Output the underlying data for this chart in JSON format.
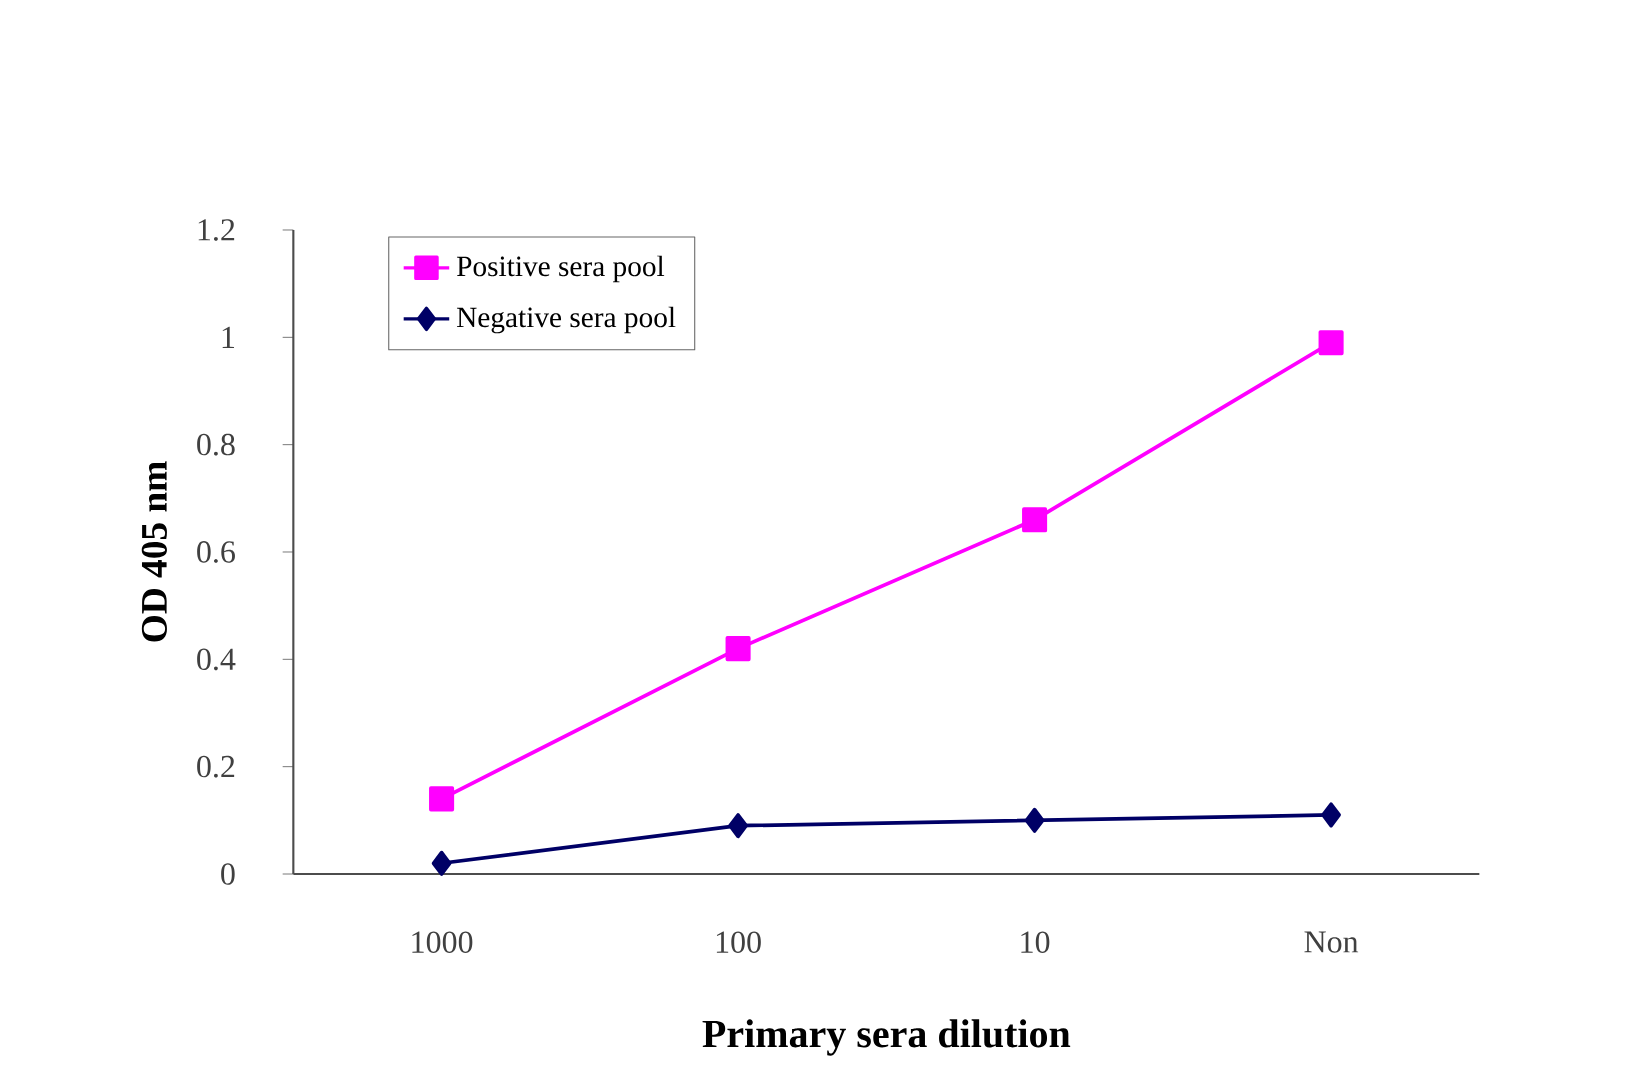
{
  "chart_data": {
    "type": "line",
    "xlabel": "Primary sera dilution",
    "ylabel": "OD 405 nm",
    "categories": [
      "1000",
      "100",
      "10",
      "Non"
    ],
    "series": [
      {
        "name": "Positive sera pool",
        "color": "#ff00ff",
        "marker": "square",
        "values": [
          0.14,
          0.42,
          0.66,
          0.99
        ]
      },
      {
        "name": "Negative sera pool",
        "color": "#000066",
        "marker": "diamond",
        "values": [
          0.02,
          0.09,
          0.1,
          0.11
        ]
      }
    ],
    "ylim": [
      0,
      1.2
    ],
    "yticks": [
      0,
      0.2,
      0.4,
      0.6,
      0.8,
      1,
      1.2
    ],
    "legend": "top left",
    "grid": false
  }
}
